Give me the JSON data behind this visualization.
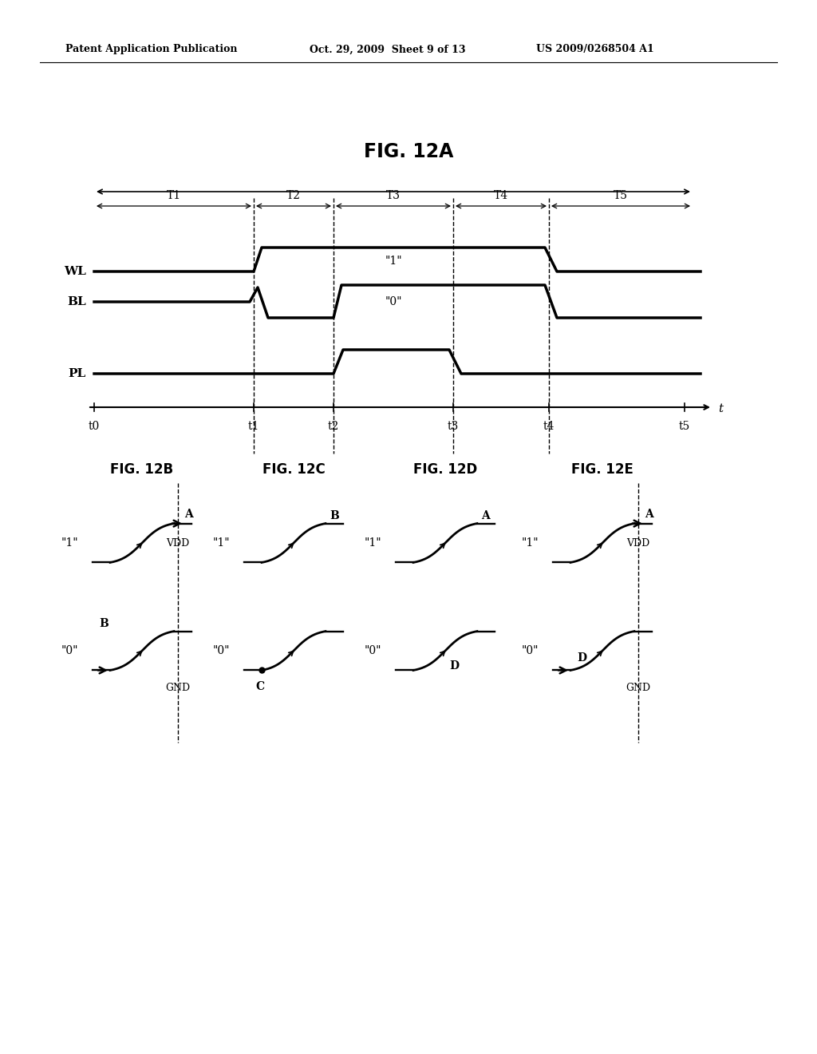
{
  "title_header_left": "Patent Application Publication",
  "title_header_mid": "Oct. 29, 2009  Sheet 9 of 13",
  "title_header_right": "US 2009/0268504 A1",
  "fig_title": "FIG. 12A",
  "bg_color": "#ffffff",
  "line_color": "#000000",
  "time_labels": [
    "t0",
    "t1",
    "t2",
    "t3",
    "t4",
    "t5"
  ],
  "period_labels": [
    "T1",
    "T2",
    "T3",
    "T4",
    "T5"
  ],
  "panel_titles": [
    "FIG. 12B",
    "FIG. 12C",
    "FIG. 12D",
    "FIG. 12E"
  ]
}
